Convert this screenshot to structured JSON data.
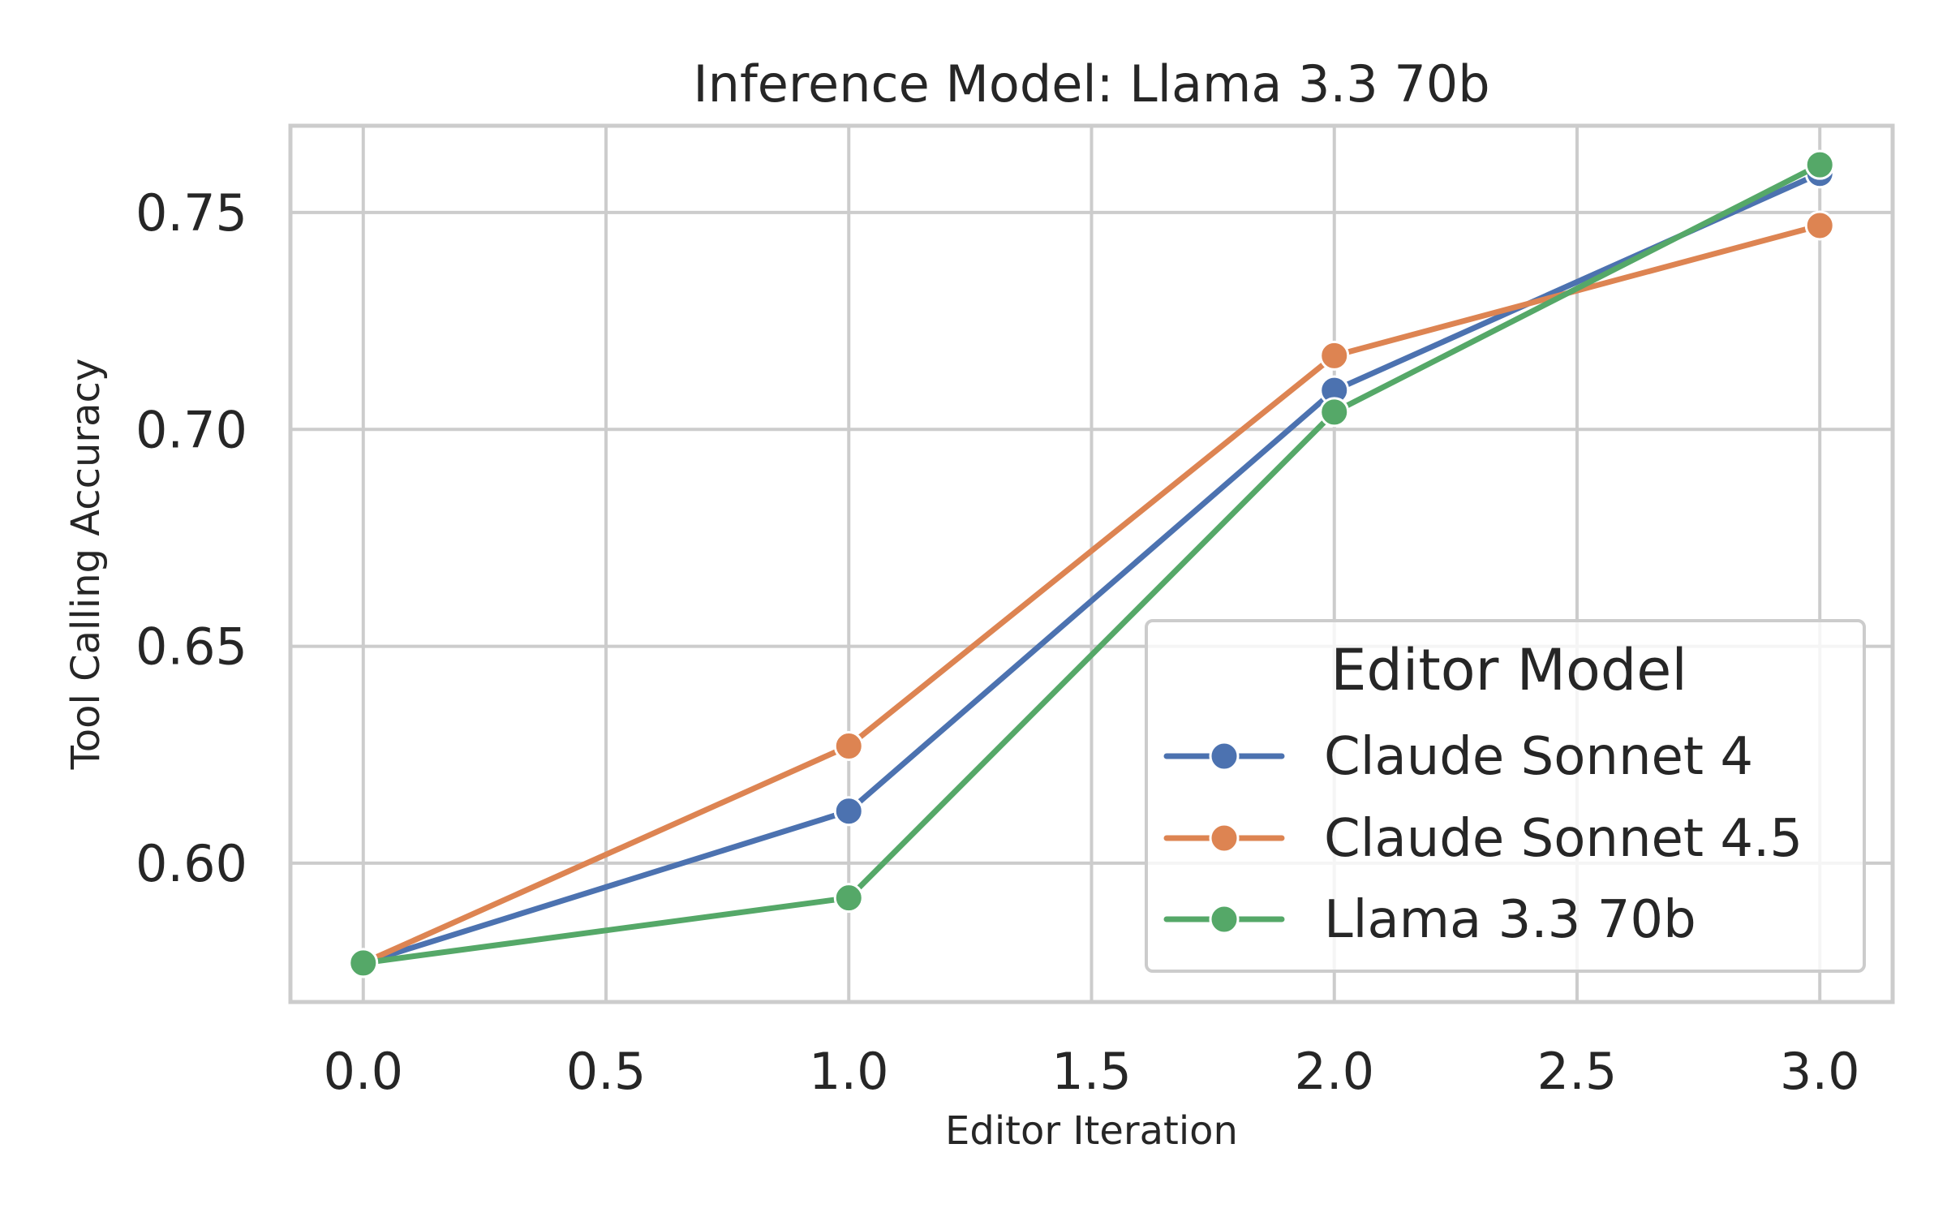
{
  "chart_data": {
    "type": "line",
    "title": "Inference Model: Llama 3.3 70b",
    "xlabel": "Editor Iteration",
    "ylabel": "Tool Calling Accuracy",
    "xlim": [
      -0.15,
      3.15
    ],
    "ylim": [
      0.568,
      0.77
    ],
    "xticks": [
      0.0,
      0.5,
      1.0,
      1.5,
      2.0,
      2.5,
      3.0
    ],
    "xtick_labels": [
      "0.0",
      "0.5",
      "1.0",
      "1.5",
      "2.0",
      "2.5",
      "3.0"
    ],
    "yticks": [
      0.6,
      0.65,
      0.7,
      0.75
    ],
    "ytick_labels": [
      "0.60",
      "0.65",
      "0.70",
      "0.75"
    ],
    "grid": true,
    "x": [
      0,
      1,
      2,
      3
    ],
    "series": [
      {
        "name": "Claude Sonnet 4",
        "color": "#4c72b0",
        "values": [
          0.577,
          0.612,
          0.709,
          0.759
        ]
      },
      {
        "name": "Claude Sonnet 4.5",
        "color": "#dd8452",
        "values": [
          0.577,
          0.627,
          0.717,
          0.747
        ]
      },
      {
        "name": "Llama 3.3 70b",
        "color": "#55a868",
        "values": [
          0.577,
          0.592,
          0.704,
          0.761
        ]
      }
    ],
    "legend": {
      "title": "Editor Model",
      "placement": "lower-right"
    }
  }
}
